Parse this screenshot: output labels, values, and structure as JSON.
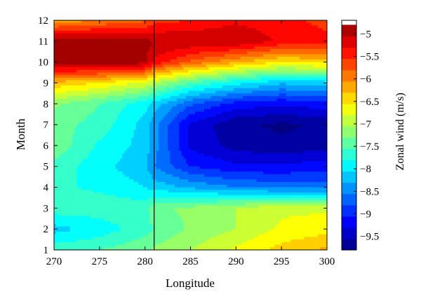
{
  "chart_data": {
    "type": "heatmap",
    "subtype": "filled-contour",
    "title": "",
    "xlabel": "Longitude",
    "ylabel": "Month",
    "xlim": [
      270,
      300
    ],
    "ylim": [
      1,
      12
    ],
    "x_ticks": [
      270,
      275,
      280,
      285,
      290,
      295,
      300
    ],
    "y_ticks": [
      1,
      2,
      3,
      4,
      5,
      6,
      7,
      8,
      9,
      10,
      11,
      12
    ],
    "vertical_line_x": 281,
    "colorbar": {
      "label": "Zonal wind (m/s)",
      "range": [
        -9.8,
        -4.7
      ],
      "ticks": [
        -5,
        -5.5,
        -6,
        -6.5,
        -7,
        -7.5,
        -8,
        -8.5,
        -9,
        -9.5
      ],
      "tick_labels": [
        "−5",
        "−5.5",
        "−6",
        "−6.5",
        "−7",
        "−7.5",
        "−8",
        "−8.5",
        "−9",
        "−9.5"
      ],
      "colormap": "jet"
    },
    "x": [
      270,
      275,
      280,
      281,
      285,
      290,
      295,
      300
    ],
    "y": [
      1,
      2,
      3,
      4,
      5,
      6,
      7,
      8,
      9,
      10,
      11,
      12
    ],
    "z": [
      [
        -7.6,
        -7.5,
        -7.3,
        -7.2,
        -7.0,
        -6.7,
        -6.4,
        -6.2
      ],
      [
        -8.1,
        -7.9,
        -7.6,
        -7.5,
        -7.2,
        -7.0,
        -6.7,
        -6.6
      ],
      [
        -7.6,
        -7.6,
        -7.6,
        -7.3,
        -7.2,
        -7.0,
        -6.8,
        -6.8
      ],
      [
        -7.7,
        -7.8,
        -8.0,
        -8.1,
        -8.3,
        -8.5,
        -8.6,
        -8.6
      ],
      [
        -7.6,
        -7.9,
        -8.2,
        -8.5,
        -9.0,
        -9.2,
        -9.2,
        -9.1
      ],
      [
        -7.3,
        -7.8,
        -8.1,
        -8.4,
        -9.3,
        -9.6,
        -9.7,
        -9.6
      ],
      [
        -7.4,
        -7.6,
        -8.1,
        -8.4,
        -9.3,
        -9.7,
        -9.8,
        -9.7
      ],
      [
        -7.2,
        -7.5,
        -7.9,
        -8.1,
        -8.7,
        -9.1,
        -9.2,
        -9.1
      ],
      [
        -6.3,
        -6.5,
        -6.8,
        -7.0,
        -7.5,
        -7.9,
        -8.2,
        -8.1
      ],
      [
        -4.8,
        -4.8,
        -4.9,
        -5.3,
        -5.8,
        -6.2,
        -6.5,
        -6.4
      ],
      [
        -4.8,
        -4.8,
        -4.9,
        -5.0,
        -5.0,
        -5.0,
        -5.3,
        -5.4
      ],
      [
        -6.2,
        -6.0,
        -5.8,
        -5.6,
        -5.5,
        -5.3,
        -5.4,
        -5.6
      ]
    ]
  }
}
